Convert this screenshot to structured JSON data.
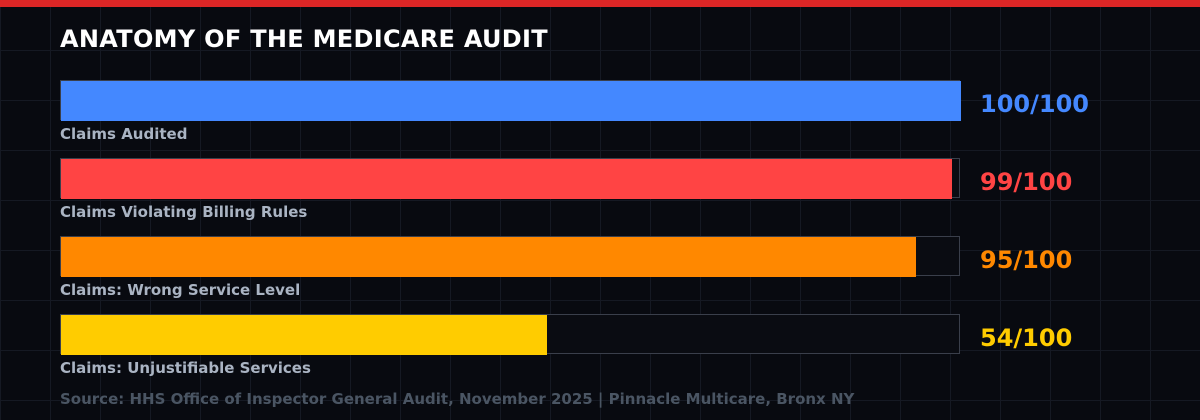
{
  "header": {
    "title": "ANATOMY OF THE MEDICARE AUDIT",
    "accent": "#dc2626"
  },
  "chart_data": {
    "type": "bar",
    "orientation": "horizontal",
    "title": "ANATOMY OF THE MEDICARE AUDIT",
    "categories": [
      "Claims Audited",
      "Claims Violating Billing Rules",
      "Claims: Wrong Service Level",
      "Claims: Unjustifiable Services"
    ],
    "values": [
      100,
      99,
      95,
      54
    ],
    "max": 100,
    "value_labels": [
      "100/100",
      "99/100",
      "95/100",
      "54/100"
    ],
    "colors": [
      "#4488ff",
      "#ff4444",
      "#ff8800",
      "#ffcc00"
    ],
    "xlim": [
      0,
      100
    ]
  },
  "footer": {
    "source": "Source: HHS Office of Inspector General Audit, November 2025 | Pinnacle Multicare, Bronx NY"
  }
}
